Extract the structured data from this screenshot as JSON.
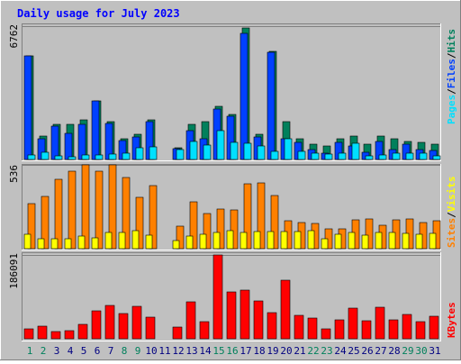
{
  "title": "Daily usage for July 2023",
  "colors": {
    "hits": "#00805c",
    "files": "#0040ff",
    "pages": "#00e0ff",
    "visits": "#ffff00",
    "sites": "#ff8000",
    "kbytes": "#ff0000",
    "title": "#0000ff",
    "weekend": "#00805c",
    "weekday": "#000080",
    "panel": "#c0c0c0",
    "frame_light": "#ffffff",
    "frame_dark": "#808080"
  },
  "chart_data": [
    {
      "type": "bar",
      "panel": "hits-files-pages",
      "categories": [
        "1",
        "2",
        "3",
        "4",
        "5",
        "6",
        "7",
        "8",
        "9",
        "10",
        "11",
        "12",
        "13",
        "14",
        "15",
        "16",
        "17",
        "18",
        "19",
        "20",
        "21",
        "22",
        "23",
        "24",
        "25",
        "26",
        "27",
        "28",
        "29",
        "30",
        "31"
      ],
      "weekend_days": [
        "1",
        "2",
        "8",
        "9",
        "15",
        "16",
        "22",
        "23",
        "29",
        "30"
      ],
      "ymax": 6762,
      "ymax_label": "6762",
      "legend": [
        "Pages",
        "/",
        "Files",
        "/",
        "Hits"
      ],
      "series": [
        {
          "name": "Hits",
          "values": [
            5260,
            1190,
            1780,
            1790,
            2000,
            2970,
            1920,
            1030,
            1270,
            1990,
            0,
            590,
            1760,
            1930,
            2700,
            2280,
            6670,
            1270,
            5500,
            1920,
            1060,
            770,
            690,
            1040,
            1180,
            760,
            1170,
            1070,
            930,
            890,
            790
          ]
        },
        {
          "name": "Files",
          "values": [
            5260,
            1050,
            1690,
            1320,
            1800,
            2950,
            1830,
            960,
            1160,
            1910,
            0,
            540,
            1450,
            1040,
            2570,
            2190,
            6380,
            1150,
            5430,
            1050,
            860,
            520,
            340,
            860,
            700,
            370,
            930,
            510,
            790,
            520,
            460
          ]
        },
        {
          "name": "Pages",
          "values": [
            230,
            360,
            160,
            150,
            210,
            250,
            270,
            330,
            580,
            620,
            0,
            520,
            920,
            720,
            1440,
            880,
            830,
            680,
            400,
            1050,
            410,
            310,
            270,
            340,
            800,
            190,
            240,
            310,
            330,
            330,
            190
          ]
        }
      ]
    },
    {
      "type": "bar",
      "panel": "visits-sites",
      "categories": [
        "1",
        "2",
        "3",
        "4",
        "5",
        "6",
        "7",
        "8",
        "9",
        "10",
        "11",
        "12",
        "13",
        "14",
        "15",
        "16",
        "17",
        "18",
        "19",
        "20",
        "21",
        "22",
        "23",
        "24",
        "25",
        "26",
        "27",
        "28",
        "29",
        "30",
        "31"
      ],
      "ymax": 536,
      "ymax_label": "536",
      "legend": [
        "Sites",
        "/",
        "Visits"
      ],
      "series": [
        {
          "name": "Visits",
          "values": [
            92,
            66,
            63,
            64,
            79,
            71,
            106,
            103,
            115,
            88,
            0,
            53,
            80,
            95,
            103,
            116,
            104,
            108,
            109,
            112,
            110,
            117,
            63,
            91,
            103,
            89,
            104,
            102,
            96,
            91,
            99
          ]
        },
        {
          "name": "Sites",
          "values": [
            290,
            336,
            444,
            496,
            535,
            493,
            536,
            456,
            327,
            403,
            0,
            143,
            298,
            224,
            255,
            248,
            413,
            423,
            338,
            178,
            168,
            161,
            129,
            129,
            186,
            189,
            147,
            183,
            188,
            168,
            176
          ]
        }
      ]
    },
    {
      "type": "bar",
      "panel": "kbytes",
      "categories": [
        "1",
        "2",
        "3",
        "4",
        "5",
        "6",
        "7",
        "8",
        "9",
        "10",
        "11",
        "12",
        "13",
        "14",
        "15",
        "16",
        "17",
        "18",
        "19",
        "20",
        "21",
        "22",
        "23",
        "24",
        "25",
        "26",
        "27",
        "28",
        "29",
        "30",
        "31"
      ],
      "ymax": 186091,
      "ymax_label": "186091",
      "legend": [
        "KBytes"
      ],
      "series": [
        {
          "name": "KBytes",
          "values": [
            23000,
            29000,
            17000,
            19000,
            33000,
            62000,
            75000,
            56000,
            73000,
            48000,
            0,
            27000,
            82000,
            39000,
            186091,
            105000,
            108000,
            84000,
            58000,
            130000,
            52000,
            46000,
            22000,
            43000,
            69000,
            41000,
            70000,
            43000,
            54000,
            38000,
            51000
          ]
        }
      ]
    }
  ]
}
